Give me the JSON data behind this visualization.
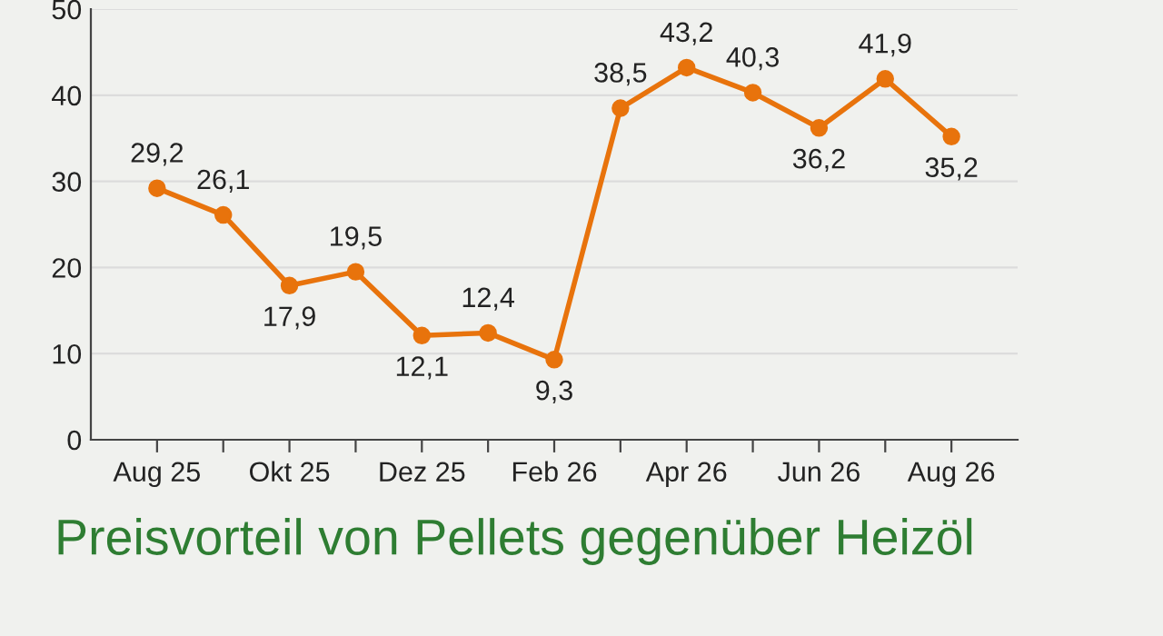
{
  "chart_data": {
    "type": "line",
    "title": "Preisvorteil von Pellets gegenüber Heizöl",
    "categories": [
      "Aug 25",
      null,
      "Okt 25",
      null,
      "Dez 25",
      null,
      "Feb 26",
      null,
      "Apr 26",
      null,
      "Jun 26",
      null,
      "Aug 26"
    ],
    "series": [
      {
        "color": "#e8730c",
        "values": [
          29.2,
          26.1,
          17.9,
          19.5,
          12.1,
          12.4,
          9.3,
          38.5,
          43.2,
          40.3,
          36.2,
          41.9,
          35.2
        ],
        "value_labels": [
          "29,2",
          "26,1",
          "17,9",
          "19,5",
          "12,1",
          "12,4",
          "9,3",
          "38,5",
          "43,2",
          "40,3",
          "36,2",
          "41,9",
          "35,2"
        ]
      }
    ],
    "ylim": [
      0,
      50
    ],
    "yticks": [
      0,
      10,
      20,
      30,
      40,
      50
    ],
    "grid": "y",
    "marker": "circle",
    "line_style": "solid",
    "legend": false
  }
}
